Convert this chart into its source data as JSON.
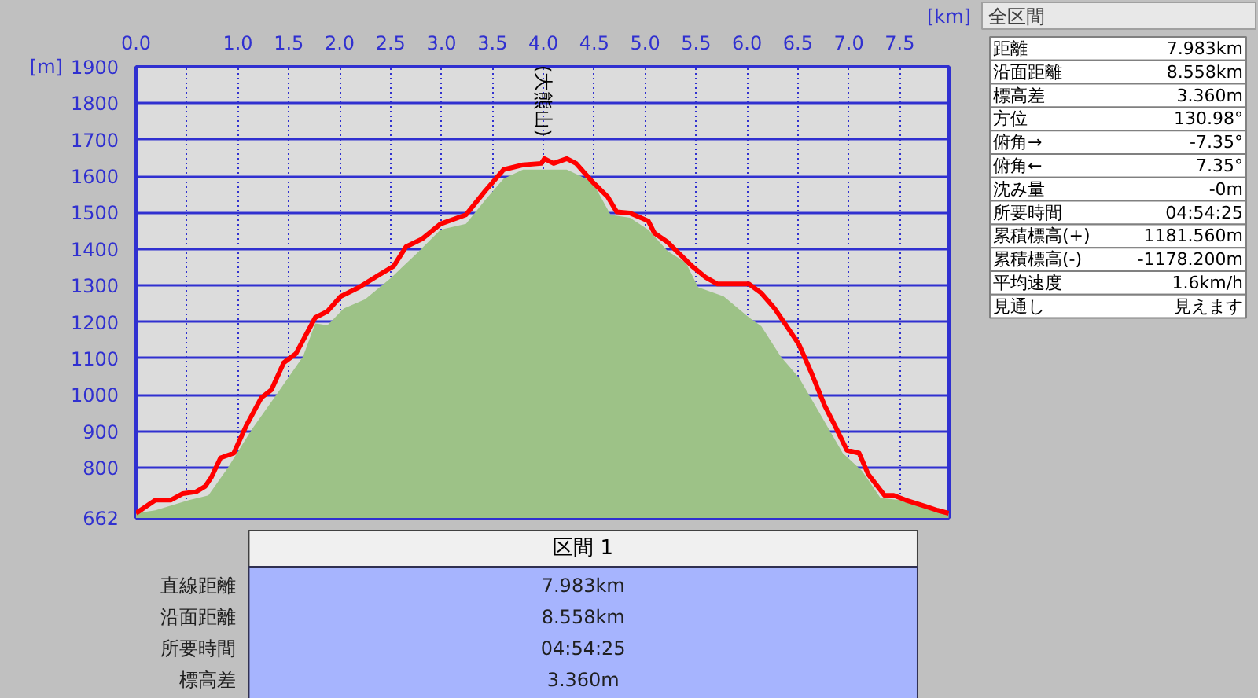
{
  "chart_data": [
    {
      "type": "area",
      "xlabel": "[km]",
      "ylabel": "[m]",
      "xlim": [
        0,
        7.983
      ],
      "ylim": [
        662,
        1900
      ],
      "xticks": [
        {
          "value": 0,
          "label": "0.0"
        },
        {
          "value": 0.5,
          "label": null
        },
        {
          "value": 1,
          "label": "1.0"
        },
        {
          "value": 1.5,
          "label": "1.5"
        },
        {
          "value": 2,
          "label": "2.0"
        },
        {
          "value": 2.5,
          "label": "2.5"
        },
        {
          "value": 3,
          "label": "3.0"
        },
        {
          "value": 3.5,
          "label": "3.5"
        },
        {
          "value": 4,
          "label": "4.0"
        },
        {
          "value": 4.5,
          "label": "4.5"
        },
        {
          "value": 5,
          "label": "5.0"
        },
        {
          "value": 5.5,
          "label": "5.5"
        },
        {
          "value": 6,
          "label": "6.0"
        },
        {
          "value": 6.5,
          "label": "6.5"
        },
        {
          "value": 7,
          "label": "7.0"
        },
        {
          "value": 7.5,
          "label": "7.5"
        }
      ],
      "yticks": [
        662,
        800,
        900,
        1000,
        1100,
        1200,
        1300,
        1400,
        1500,
        1600,
        1700,
        1800,
        1900
      ],
      "grid": true,
      "annotations": [
        {
          "text": "(大熊山)",
          "x": 4.0,
          "y": 1648
        }
      ],
      "series": [
        {
          "type": "area",
          "color": "#9dc287",
          "x": [
            0,
            0.19,
            0.52,
            0.71,
            0.9,
            1.14,
            1.39,
            1.64,
            1.76,
            1.88,
            2.04,
            2.25,
            2.5,
            2.75,
            2.99,
            3.24,
            3.43,
            3.61,
            3.8,
            4.23,
            4.48,
            4.66,
            4.85,
            5.03,
            5.22,
            5.4,
            5.52,
            5.77,
            6.02,
            6.14,
            6.33,
            6.51,
            6.7,
            6.94,
            7.13,
            7.31,
            7.5,
            7.75,
            7.98
          ],
          "values": [
            675,
            683,
            711,
            724,
            799,
            906,
            1005,
            1105,
            1196,
            1191,
            1237,
            1262,
            1320,
            1386,
            1453,
            1469,
            1535,
            1593,
            1618,
            1618,
            1585,
            1494,
            1486,
            1453,
            1395,
            1362,
            1295,
            1270,
            1212,
            1188,
            1105,
            1047,
            956,
            840,
            791,
            717,
            711,
            691,
            675
          ]
        },
        {
          "type": "line",
          "color": "#ff0000",
          "x": [
            0,
            0.19,
            0.34,
            0.46,
            0.59,
            0.68,
            0.74,
            0.83,
            0.96,
            1.08,
            1.23,
            1.33,
            1.45,
            1.57,
            1.76,
            1.88,
            2.01,
            2.19,
            2.38,
            2.53,
            2.65,
            2.81,
            2.99,
            3.24,
            3.43,
            3.61,
            3.8,
            3.98,
            4.01,
            4.1,
            4.23,
            4.32,
            4.48,
            4.63,
            4.72,
            4.85,
            5.03,
            5.09,
            5.22,
            5.34,
            5.46,
            5.59,
            5.71,
            6.02,
            6.14,
            6.27,
            6.39,
            6.51,
            6.64,
            6.76,
            6.88,
            6.98,
            7.1,
            7.19,
            7.35,
            7.44,
            7.56,
            7.75,
            7.87,
            7.98
          ],
          "values": [
            675,
            711,
            711,
            729,
            734,
            749,
            774,
            827,
            840,
            914,
            992,
            1014,
            1088,
            1113,
            1212,
            1229,
            1270,
            1295,
            1328,
            1353,
            1406,
            1428,
            1469,
            1494,
            1560,
            1618,
            1631,
            1635,
            1648,
            1635,
            1648,
            1635,
            1585,
            1544,
            1502,
            1499,
            1477,
            1444,
            1419,
            1386,
            1353,
            1323,
            1304,
            1304,
            1279,
            1237,
            1188,
            1138,
            1055,
            972,
            906,
            848,
            840,
            782,
            724,
            724,
            711,
            694,
            683,
            675
          ]
        }
      ]
    },
    {
      "type": "other",
      "title": "区間 1",
      "annotations": [
        "直線距離",
        "7.983km",
        "沿面距離",
        "8.558km",
        "所要時間",
        "04:54:25",
        "標高差",
        "3.360m"
      ]
    },
    {
      "type": "other",
      "title": "全区間",
      "annotations": [
        "距離",
        "7.983km",
        "沿面距離",
        "8.558km",
        "標高差",
        "3.360m",
        "方位",
        "130.98°",
        "俯角→",
        "-7.35°",
        "俯角←",
        "7.35°",
        "沈み量",
        "-0m",
        "所要時間",
        "04:54:25",
        "累積標高(+)",
        "1181.560m",
        "累積標高(-)",
        "-1178.200m",
        "平均速度",
        "1.6km/h",
        "見通し",
        "見えます"
      ]
    }
  ]
}
